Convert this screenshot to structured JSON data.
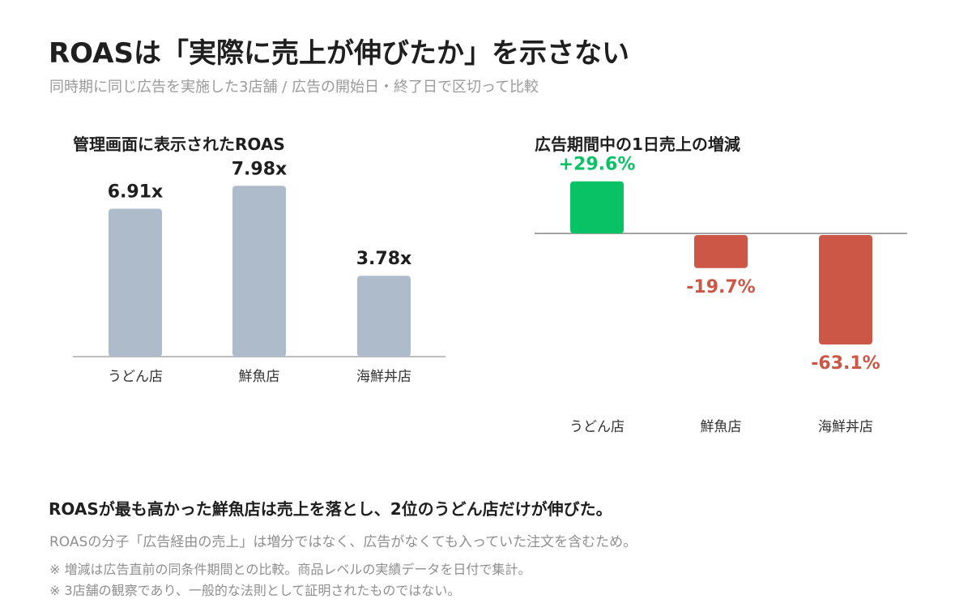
{
  "header": {
    "title": "ROASは「実際に売上が伸びたか」を示さない",
    "subtitle": "同時期に同じ広告を実施した3店舗 / 広告の開始日・終了日で区切って比較"
  },
  "chart_data": [
    {
      "type": "bar",
      "title": "管理画面に表示されたROAS",
      "categories": [
        "うどん店",
        "鮮魚店",
        "海鮮丼店"
      ],
      "values": [
        6.91,
        7.98,
        3.78
      ],
      "value_labels": [
        "6.91x",
        "7.98x",
        "3.78x"
      ],
      "ylim": [
        0,
        8.9
      ],
      "grid": false,
      "colors": {
        "bar": "#aebbca",
        "axis": "#bfbfbf",
        "label": "#1f1f1f"
      }
    },
    {
      "type": "bar",
      "title": "広告期間中の1日売上の増減",
      "categories": [
        "うどん店",
        "鮮魚店",
        "海鮮丼店"
      ],
      "values": [
        29.6,
        -19.7,
        -63.1
      ],
      "value_labels": [
        "+29.6%",
        "-19.7%",
        "-63.1%"
      ],
      "ylim": [
        -65,
        35
      ],
      "grid": false,
      "colors": {
        "positive": "#0ac266",
        "negative": "#cc5746",
        "axis": "#a3a3a3"
      }
    }
  ],
  "footer": {
    "conclusion": "ROASが最も高かった鮮魚店は売上を落とし、2位のうどん店だけが伸びた。",
    "explanation": "ROASの分子「広告経由の売上」は増分ではなく、広告がなくても入っていた注文を含むため。",
    "note1": "※ 増減は広告直前の同条件期間との比較。商品レベルの実績データを日付で集計。",
    "note2": "※ 3店舗の観察であり、一般的な法則として証明されたものではない。"
  }
}
